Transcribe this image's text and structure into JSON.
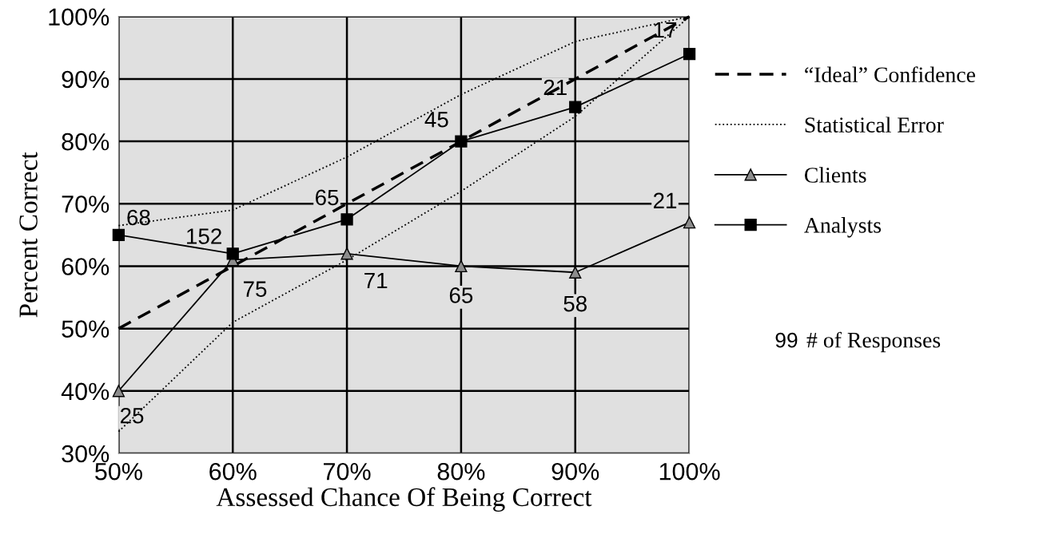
{
  "chart_data": {
    "type": "line",
    "xlabel": "Assessed Chance Of Being Correct",
    "ylabel": "Percent Correct",
    "x": [
      50,
      60,
      70,
      80,
      90,
      100
    ],
    "series": [
      {
        "name": "“Ideal” Confidence",
        "color": "#000000",
        "line_style": "dashed",
        "marker": "none",
        "values": [
          50,
          60,
          70,
          80,
          90,
          100
        ]
      },
      {
        "name": "Statistical Error",
        "color": "#000000",
        "line_style": "dotted",
        "marker": "none",
        "values": [
          66.5,
          69,
          77.5,
          87.5,
          96,
          100
        ]
      },
      {
        "color": "#000000",
        "line_style": "dotted",
        "marker": "none",
        "values": [
          33.5,
          51,
          61,
          72,
          84,
          100
        ]
      },
      {
        "name": "Clients",
        "color": "#8c8c8c",
        "line_style": "solid",
        "marker": "triangle",
        "values": [
          40,
          61,
          62,
          60,
          59,
          67
        ]
      },
      {
        "name": "Analysts",
        "color": "#000000",
        "line_style": "solid",
        "marker": "square",
        "values": [
          65,
          62,
          67.5,
          80,
          85.5,
          94
        ]
      }
    ],
    "xlim": [
      50,
      100
    ],
    "ylim": [
      30,
      100
    ],
    "xticks": [
      {
        "value": 50,
        "label": "50%"
      },
      {
        "value": 60,
        "label": "60%"
      },
      {
        "value": 70,
        "label": "70%"
      },
      {
        "value": 80,
        "label": "80%"
      },
      {
        "value": 90,
        "label": "90%"
      },
      {
        "value": 100,
        "label": "100%"
      }
    ],
    "yticks": [
      {
        "value": 30,
        "label": "30%"
      },
      {
        "value": 40,
        "label": "40%"
      },
      {
        "value": 50,
        "label": "50%"
      },
      {
        "value": 60,
        "label": "60%"
      },
      {
        "value": 70,
        "label": "70%"
      },
      {
        "value": 80,
        "label": "80%"
      },
      {
        "value": 90,
        "label": "90%"
      },
      {
        "value": 100,
        "label": "100%"
      }
    ],
    "grid": true,
    "legend": "right",
    "annotations": [
      "68",
      "152",
      "65",
      "45",
      "21",
      "17",
      "25",
      "75",
      "71",
      "65",
      "58",
      "21",
      "99",
      "# of Responses"
    ]
  }
}
